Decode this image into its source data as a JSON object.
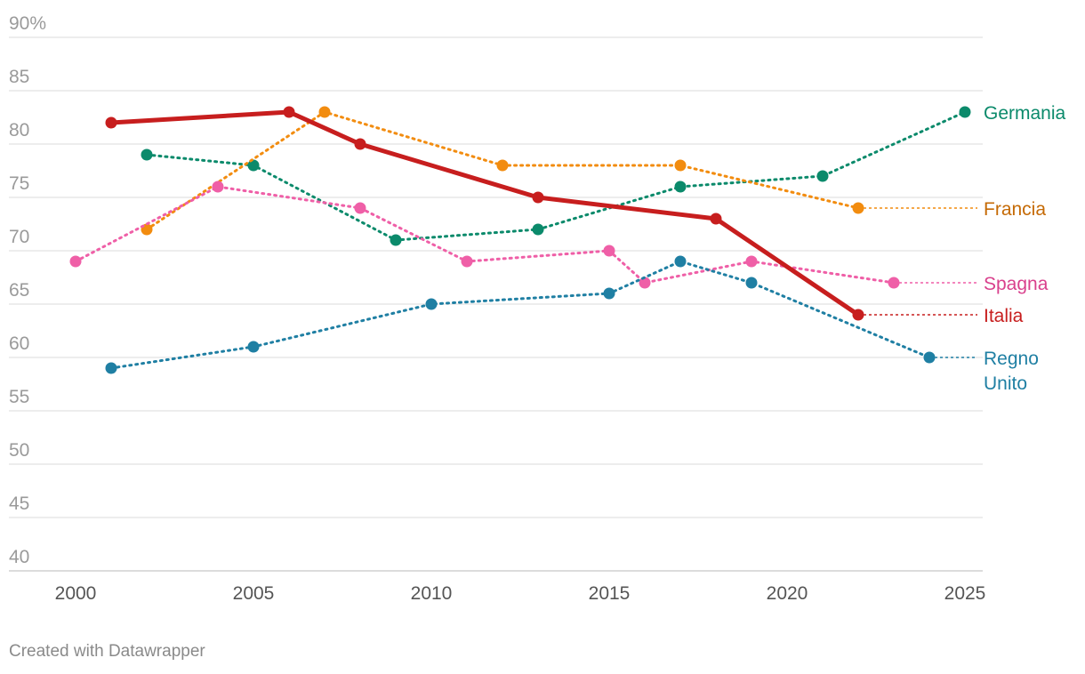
{
  "chart_data": {
    "type": "line",
    "y_unit_suffix": "%",
    "ylim": [
      40,
      90
    ],
    "y_ticks": [
      40,
      45,
      50,
      55,
      60,
      65,
      70,
      75,
      80,
      85,
      90
    ],
    "xlim": [
      2000,
      2025
    ],
    "x_ticks": [
      2000,
      2005,
      2010,
      2015,
      2020,
      2025
    ],
    "grid": true,
    "legend": "direct labels at right end of lines",
    "series": [
      {
        "name": "Germania",
        "label_lines": [
          "Germania"
        ],
        "color": "#0b8a6b",
        "style": "dotted",
        "x": [
          2002,
          2005,
          2009,
          2013,
          2017,
          2021,
          2025
        ],
        "values": [
          79,
          78,
          71,
          72,
          76,
          77,
          83
        ],
        "extend_to": null
      },
      {
        "name": "Francia",
        "label_lines": [
          "Francia"
        ],
        "color": "#f28c0f",
        "label_color": "#c56a05",
        "style": "dotted",
        "x": [
          2002,
          2007,
          2012,
          2017,
          2022
        ],
        "values": [
          72,
          83,
          78,
          78,
          74
        ],
        "extend_to": 2025
      },
      {
        "name": "Spagna",
        "label_lines": [
          "Spagna"
        ],
        "color": "#ef5fa7",
        "label_color": "#d9418d",
        "style": "dotted",
        "x": [
          2000,
          2004,
          2008,
          2011,
          2015,
          2016,
          2019,
          2023
        ],
        "values": [
          69,
          76,
          74,
          69,
          70,
          67,
          69,
          67
        ],
        "extend_to": 2025
      },
      {
        "name": "Italia",
        "label_lines": [
          "Italia"
        ],
        "color": "#c71e1e",
        "style": "solid",
        "x": [
          2001,
          2006,
          2008,
          2013,
          2018,
          2022
        ],
        "values": [
          82,
          83,
          80,
          75,
          73,
          64
        ],
        "extend_to": 2025
      },
      {
        "name": "Regno Unito",
        "label_lines": [
          "Regno",
          "Unito"
        ],
        "color": "#1f7fa3",
        "style": "dotted",
        "x": [
          2001,
          2005,
          2010,
          2015,
          2017,
          2019,
          2024
        ],
        "values": [
          59,
          61,
          65,
          66,
          69,
          67,
          60
        ],
        "extend_to": 2025
      }
    ]
  },
  "footer": {
    "credit": "Created with Datawrapper"
  }
}
